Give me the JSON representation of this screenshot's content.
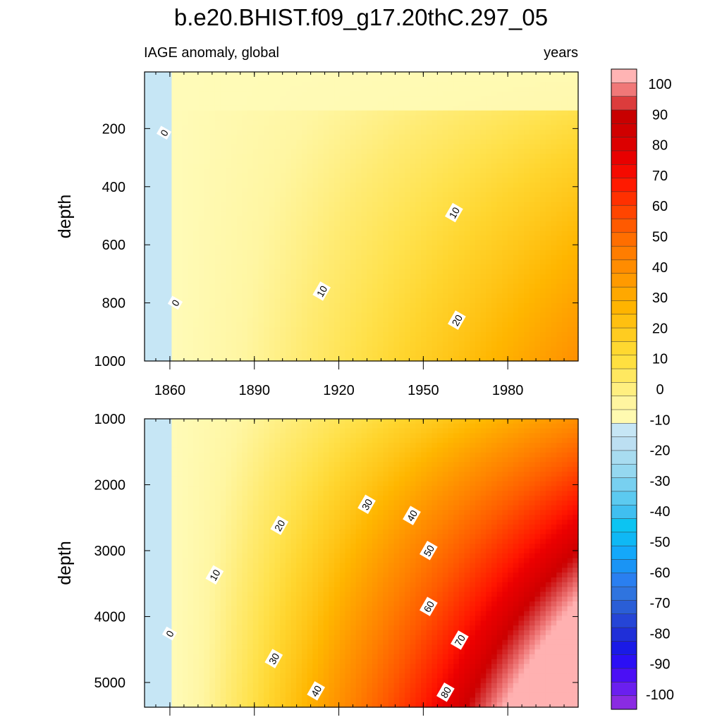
{
  "chart_data": {
    "type": "heatmap",
    "title": "b.e20.BHIST.f09_g17.20thC.297_05",
    "left_string": "IAGE anomaly, global",
    "right_string": "years",
    "x_ticks": [
      1860,
      1890,
      1920,
      1950,
      1980
    ],
    "xlim": [
      1851,
      2005
    ],
    "colorbar": {
      "levels": [
        -100,
        -90,
        -80,
        -70,
        -60,
        -50,
        -40,
        -30,
        -20,
        -10,
        0,
        10,
        20,
        30,
        40,
        50,
        60,
        70,
        80,
        90,
        100
      ],
      "colors": [
        "#8a2be2",
        "#6a1fef",
        "#4b0ff5",
        "#2b0ff5",
        "#1a1ae6",
        "#1f2fd8",
        "#2545d6",
        "#2a5ed6",
        "#2f74df",
        "#2a7ff0",
        "#1a94f5",
        "#14a8fa",
        "#0fb8f5",
        "#0cc4f2",
        "#40bff0",
        "#5ccaf0",
        "#78d0f0",
        "#95d8f0",
        "#a8dcf0",
        "#bcdff2",
        "#c6e6f5",
        "#fffab0",
        "#fff5a0",
        "#ffef80",
        "#ffe860",
        "#ffe040",
        "#ffd830",
        "#ffcc20",
        "#ffc010",
        "#ffb400",
        "#ffa800",
        "#ff9a00",
        "#ff8c00",
        "#ff7d00",
        "#ff6e00",
        "#ff5a00",
        "#ff4500",
        "#ff3000",
        "#ff1a00",
        "#f50a00",
        "#e80000",
        "#dc0000",
        "#d00000",
        "#c80000",
        "#dc3c3c",
        "#f07878",
        "#ffb4b4"
      ]
    },
    "panels": [
      {
        "ylabel": "depth",
        "y_ticks": [
          200,
          400,
          600,
          800,
          1000
        ],
        "ylim": [
          5,
          1000
        ],
        "contour_labels": [
          {
            "text": "0",
            "year": 1858,
            "depth": 215
          },
          {
            "text": "0",
            "year": 1862,
            "depth": 800
          },
          {
            "text": "10",
            "year": 1914,
            "depth": 760
          },
          {
            "text": "10",
            "year": 1961,
            "depth": 490
          },
          {
            "text": "20",
            "year": 1962,
            "depth": 860
          }
        ]
      },
      {
        "ylabel": "depth",
        "y_ticks": [
          1000,
          2000,
          3000,
          4000,
          5000
        ],
        "ylim": [
          1000,
          5375
        ],
        "contour_labels": [
          {
            "text": "0",
            "year": 1860,
            "depth": 4260
          },
          {
            "text": "10",
            "year": 1876,
            "depth": 3370
          },
          {
            "text": "20",
            "year": 1899,
            "depth": 2620
          },
          {
            "text": "30",
            "year": 1930,
            "depth": 2300
          },
          {
            "text": "30",
            "year": 1897,
            "depth": 4640
          },
          {
            "text": "40",
            "year": 1946,
            "depth": 2470
          },
          {
            "text": "40",
            "year": 1912,
            "depth": 5130
          },
          {
            "text": "50",
            "year": 1952,
            "depth": 3000
          },
          {
            "text": "60",
            "year": 1952,
            "depth": 3850
          },
          {
            "text": "70",
            "year": 1963,
            "depth": 4360
          },
          {
            "text": "80",
            "year": 1958,
            "depth": 5150
          }
        ]
      }
    ]
  }
}
